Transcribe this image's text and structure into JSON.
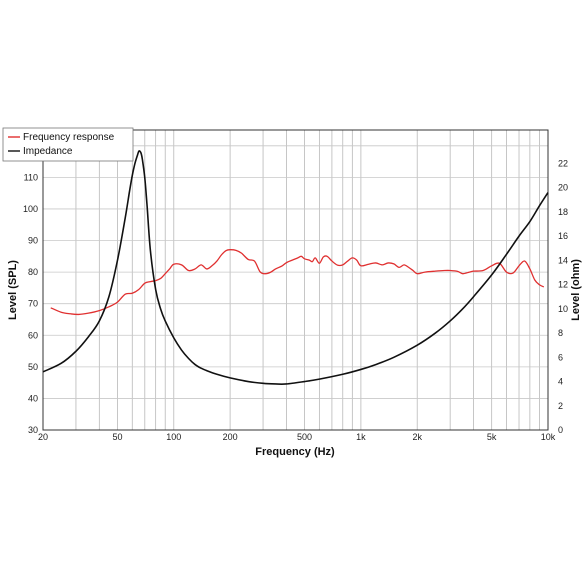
{
  "chart_data": {
    "type": "line",
    "title": "",
    "xlabel": "Frequency (Hz)",
    "ylabel": "Level (SPL)",
    "y2label": "Level (ohm)",
    "xscale": "log",
    "xlim": [
      20,
      10000
    ],
    "ylim": [
      30,
      125
    ],
    "y2lim": [
      0,
      24.76
    ],
    "grid": true,
    "legend_position": "top-left",
    "x_ticks": [
      {
        "value": 20,
        "label": "20"
      },
      {
        "value": 50,
        "label": "50"
      },
      {
        "value": 100,
        "label": "100"
      },
      {
        "value": 200,
        "label": "200"
      },
      {
        "value": 500,
        "label": "500"
      },
      {
        "value": 1000,
        "label": "1k"
      },
      {
        "value": 2000,
        "label": "2k"
      },
      {
        "value": 5000,
        "label": "5k"
      },
      {
        "value": 10000,
        "label": "10k"
      }
    ],
    "y_ticks": [
      30,
      40,
      50,
      60,
      70,
      80,
      90,
      100,
      110,
      120
    ],
    "y2_ticks": [
      0,
      2,
      4,
      6,
      8,
      10,
      12,
      14,
      16,
      18,
      20,
      22
    ],
    "series": [
      {
        "name": "Frequency response",
        "color": "#e03030",
        "axis": "left",
        "x": [
          22,
          25,
          28,
          31,
          35,
          40,
          45,
          50,
          55,
          60,
          65,
          70,
          75,
          80,
          85,
          90,
          95,
          100,
          110,
          120,
          130,
          140,
          150,
          160,
          170,
          180,
          190,
          200,
          215,
          230,
          250,
          270,
          290,
          310,
          330,
          350,
          380,
          400,
          430,
          460,
          480,
          500,
          530,
          550,
          570,
          600,
          630,
          660,
          700,
          750,
          800,
          850,
          900,
          950,
          1000,
          1100,
          1200,
          1300,
          1400,
          1500,
          1600,
          1700,
          1800,
          1900,
          2000,
          2200,
          2500,
          2800,
          3000,
          3300,
          3500,
          3800,
          4000,
          4500,
          5000,
          5500,
          6000,
          6500,
          7000,
          7500,
          8000,
          8500,
          9000,
          9500
        ],
        "y": [
          68.7,
          67.3,
          66.8,
          66.6,
          67.0,
          67.8,
          69.0,
          70.5,
          73.0,
          73.3,
          74.5,
          76.5,
          77.0,
          77.3,
          78.0,
          79.5,
          81.0,
          82.5,
          82.3,
          80.5,
          81.0,
          82.3,
          81.0,
          82.0,
          83.5,
          85.5,
          86.8,
          87.1,
          86.9,
          86.0,
          84.0,
          83.5,
          80.0,
          79.5,
          80.0,
          81.0,
          82.0,
          83.0,
          83.8,
          84.5,
          85.0,
          84.2,
          83.8,
          83.3,
          84.5,
          82.8,
          84.8,
          85.0,
          83.5,
          82.2,
          82.3,
          83.5,
          84.5,
          83.8,
          82.0,
          82.5,
          82.9,
          82.3,
          82.9,
          82.6,
          81.5,
          82.3,
          81.5,
          80.5,
          79.5,
          80.0,
          80.3,
          80.5,
          80.5,
          80.2,
          79.5,
          80.0,
          80.3,
          80.5,
          82.0,
          82.8,
          80.0,
          79.7,
          82.0,
          83.5,
          81.0,
          77.5,
          76.0,
          75.3
        ]
      },
      {
        "name": "Impedance",
        "color": "#111111",
        "axis": "right",
        "x": [
          20,
          25,
          30,
          35,
          40,
          45,
          50,
          55,
          58,
          60,
          62,
          64,
          65,
          66,
          67,
          68,
          70,
          72,
          75,
          80,
          85,
          90,
          100,
          110,
          120,
          130,
          140,
          150,
          170,
          200,
          250,
          300,
          350,
          400,
          500,
          600,
          800,
          1000,
          1200,
          1500,
          2000,
          2500,
          3000,
          3500,
          4000,
          5000,
          6000,
          7000,
          8000,
          9000,
          10000
        ],
        "y": [
          4.8,
          5.5,
          6.5,
          7.7,
          9.0,
          11.0,
          14.0,
          17.5,
          19.7,
          21.0,
          22.0,
          22.7,
          23.0,
          23.0,
          22.8,
          22.3,
          20.8,
          18.5,
          14.8,
          11.6,
          10.0,
          9.0,
          7.6,
          6.6,
          5.9,
          5.4,
          5.1,
          4.9,
          4.6,
          4.3,
          4.0,
          3.85,
          3.8,
          3.8,
          4.0,
          4.2,
          4.6,
          5.0,
          5.4,
          6.0,
          7.0,
          8.0,
          9.0,
          10.0,
          11.0,
          12.8,
          14.5,
          16.0,
          17.2,
          18.5,
          19.6
        ]
      }
    ]
  }
}
